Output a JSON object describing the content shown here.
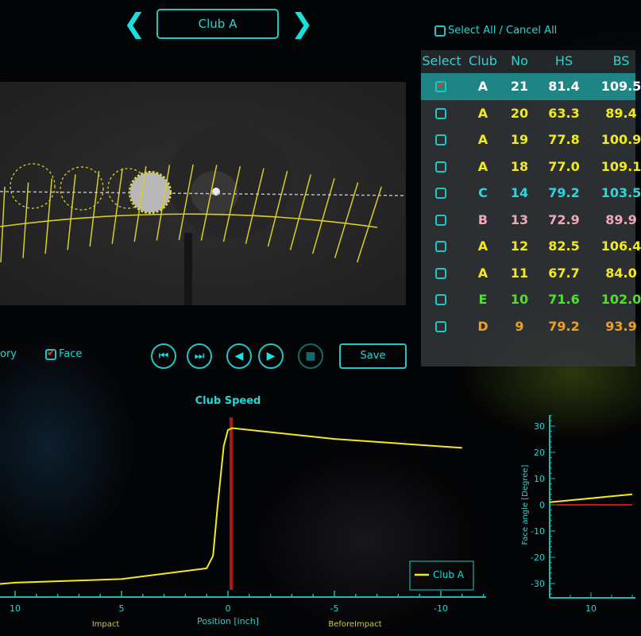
{
  "nav": {
    "prev_icon": "chevron-left-icon",
    "next_icon": "chevron-right-icon",
    "club_label": "Club A"
  },
  "select_all_label": "Select All / Cancel All",
  "table": {
    "headers": [
      "Select",
      "Club",
      "No",
      "HS",
      "BS"
    ],
    "rows": [
      {
        "selected": true,
        "club": "A",
        "no": "21",
        "hs": "81.4",
        "bs": "109.5",
        "color": "#ffffff"
      },
      {
        "selected": false,
        "club": "A",
        "no": "20",
        "hs": "63.3",
        "bs": "89.4",
        "color": "#f2ea1a"
      },
      {
        "selected": false,
        "club": "A",
        "no": "19",
        "hs": "77.8",
        "bs": "100.9",
        "color": "#f2ea1a"
      },
      {
        "selected": false,
        "club": "A",
        "no": "18",
        "hs": "77.0",
        "bs": "109.1",
        "color": "#f2ea1a"
      },
      {
        "selected": false,
        "club": "C",
        "no": "14",
        "hs": "79.2",
        "bs": "103.5",
        "color": "#2ad8e0"
      },
      {
        "selected": false,
        "club": "B",
        "no": "13",
        "hs": "72.9",
        "bs": "89.9",
        "color": "#f0a8b8"
      },
      {
        "selected": false,
        "club": "A",
        "no": "12",
        "hs": "82.5",
        "bs": "106.4",
        "color": "#f2ea1a"
      },
      {
        "selected": false,
        "club": "A",
        "no": "11",
        "hs": "67.7",
        "bs": "84.0",
        "color": "#f2ea1a"
      },
      {
        "selected": false,
        "club": "E",
        "no": "10",
        "hs": "71.6",
        "bs": "102.0",
        "color": "#4ee02a"
      },
      {
        "selected": false,
        "club": "D",
        "no": "9",
        "hs": "79.2",
        "bs": "93.9",
        "color": "#f0a020"
      }
    ]
  },
  "controls": {
    "trajectory_label": "ory",
    "face_label": "Face",
    "face_checked": true,
    "buttons": [
      {
        "name": "skip-to-start",
        "icon": "skip-start-icon"
      },
      {
        "name": "skip-to-impact",
        "icon": "skip-impact-icon"
      },
      {
        "name": "step-back",
        "icon": "play-reverse-icon"
      },
      {
        "name": "step-forward",
        "icon": "play-icon"
      },
      {
        "name": "stop",
        "icon": "stop-icon",
        "disabled": true
      }
    ],
    "save_label": "Save"
  },
  "chart_data": [
    {
      "type": "line",
      "title": "Club Speed",
      "xlabel": "Position [inch]",
      "x_annotations": [
        {
          "x": 5,
          "text": "Impact"
        },
        {
          "x": -5,
          "text": "BeforeImpact"
        }
      ],
      "xlim": [
        11,
        -12
      ],
      "xticks": [
        10,
        5,
        0,
        -5,
        -10
      ],
      "x_reversed": true,
      "ylim": [
        0,
        100
      ],
      "y_axis_labels_shown": false,
      "impact_marker_x": -0.15,
      "marker_color": "#b01818",
      "series": [
        {
          "name": "Club A",
          "color": "#f2ea1a",
          "x": [
            11,
            10,
            5,
            1,
            0.7,
            0.5,
            0.2,
            0,
            -0.2,
            -5,
            -11
          ],
          "y": [
            7,
            8,
            10,
            16,
            23,
            49,
            84,
            93,
            94,
            88,
            83
          ]
        }
      ],
      "legend": "bottom-right"
    },
    {
      "type": "line",
      "ylabel": "Face angle [Degree]",
      "ylim": [
        -35,
        35
      ],
      "yticks": [
        30,
        20,
        10,
        0,
        -10,
        -20,
        -30
      ],
      "xticks": [
        10
      ],
      "xlim": [
        12,
        8
      ],
      "x_reversed": true,
      "series": [
        {
          "color": "#f2ea1a",
          "x": [
            12,
            8
          ],
          "y": [
            1,
            4
          ]
        },
        {
          "color": "#c01818",
          "x": [
            11.7,
            8
          ],
          "y": [
            0,
            0
          ]
        }
      ]
    }
  ],
  "colors": {
    "accent": "#22d8d4",
    "panel": "#32373a",
    "selected_row": "#1f8584"
  }
}
